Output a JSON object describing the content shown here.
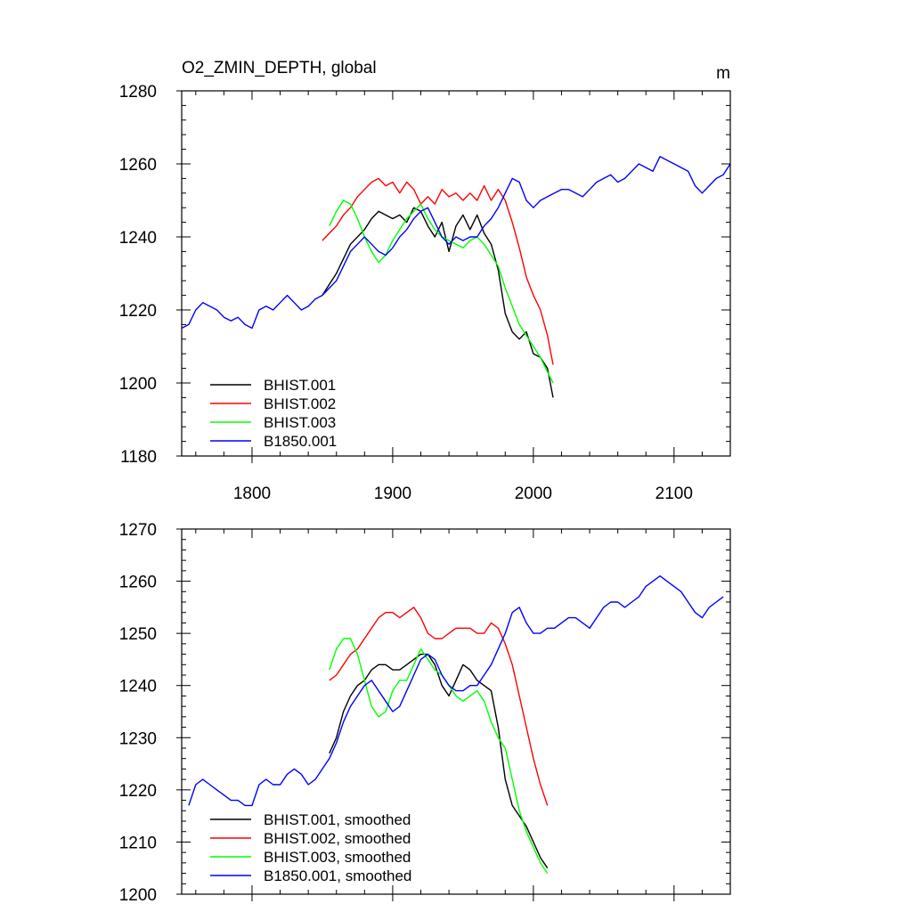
{
  "chart_data": [
    {
      "type": "line",
      "title": "O2_ZMIN_DEPTH, global",
      "unit_label": "m",
      "xlim": [
        1750,
        2140
      ],
      "ylim": [
        1180,
        1280
      ],
      "xticks": [
        1800,
        1900,
        2000,
        2100
      ],
      "yticks": [
        1180,
        1200,
        1220,
        1240,
        1260,
        1280
      ],
      "xtick_labels": [
        "1800",
        "1900",
        "2000",
        "2100"
      ],
      "ytick_labels": [
        "1180",
        "1200",
        "1220",
        "1240",
        "1260",
        "1280"
      ],
      "legend_position": "bottom-left",
      "series": [
        {
          "name": "BHIST.001",
          "color": "#000000",
          "x": [
            1850,
            1855,
            1860,
            1865,
            1870,
            1875,
            1880,
            1885,
            1890,
            1895,
            1900,
            1905,
            1910,
            1915,
            1920,
            1925,
            1930,
            1935,
            1940,
            1945,
            1950,
            1955,
            1960,
            1965,
            1970,
            1975,
            1980,
            1985,
            1990,
            1995,
            2000,
            2005,
            2010,
            2014
          ],
          "y": [
            1224,
            1227,
            1230,
            1234,
            1238,
            1240,
            1242,
            1245,
            1247,
            1246,
            1245,
            1246,
            1244,
            1248,
            1247,
            1243,
            1240,
            1244,
            1236,
            1243,
            1246,
            1242,
            1246,
            1241,
            1238,
            1231,
            1219,
            1214,
            1212,
            1214,
            1208,
            1207,
            1204,
            1196
          ]
        },
        {
          "name": "BHIST.002",
          "color": "#ff0000",
          "x": [
            1850,
            1855,
            1860,
            1865,
            1870,
            1875,
            1880,
            1885,
            1890,
            1895,
            1900,
            1905,
            1910,
            1915,
            1920,
            1925,
            1930,
            1935,
            1940,
            1945,
            1950,
            1955,
            1960,
            1965,
            1970,
            1975,
            1980,
            1985,
            1990,
            1995,
            2000,
            2005,
            2010,
            2014
          ],
          "y": [
            1239,
            1241,
            1243,
            1246,
            1248,
            1251,
            1253,
            1255,
            1256,
            1254,
            1255,
            1252,
            1255,
            1253,
            1249,
            1251,
            1249,
            1253,
            1251,
            1252,
            1250,
            1252,
            1250,
            1254,
            1250,
            1253,
            1250,
            1244,
            1237,
            1229,
            1224,
            1220,
            1213,
            1205
          ]
        },
        {
          "name": "BHIST.003",
          "color": "#00ff00",
          "x": [
            1855,
            1860,
            1865,
            1870,
            1875,
            1880,
            1885,
            1890,
            1895,
            1900,
            1905,
            1910,
            1915,
            1920,
            1925,
            1930,
            1935,
            1940,
            1945,
            1950,
            1955,
            1960,
            1965,
            1970,
            1975,
            1980,
            1985,
            1990,
            1995,
            2000,
            2005,
            2010,
            2014
          ],
          "y": [
            1243,
            1247,
            1250,
            1249,
            1245,
            1240,
            1236,
            1233,
            1235,
            1239,
            1242,
            1245,
            1247,
            1249,
            1245,
            1242,
            1240,
            1239,
            1238,
            1237,
            1239,
            1240,
            1238,
            1235,
            1232,
            1226,
            1221,
            1216,
            1213,
            1210,
            1207,
            1203,
            1200
          ]
        },
        {
          "name": "B1850.001",
          "color": "#0000ff",
          "x": [
            1750,
            1755,
            1760,
            1765,
            1770,
            1775,
            1780,
            1785,
            1790,
            1795,
            1800,
            1805,
            1810,
            1815,
            1820,
            1825,
            1830,
            1835,
            1840,
            1845,
            1850,
            1855,
            1860,
            1865,
            1870,
            1875,
            1880,
            1885,
            1890,
            1895,
            1900,
            1905,
            1910,
            1915,
            1920,
            1925,
            1930,
            1935,
            1940,
            1945,
            1950,
            1955,
            1960,
            1965,
            1970,
            1975,
            1980,
            1985,
            1990,
            1995,
            2000,
            2005,
            2010,
            2015,
            2020,
            2025,
            2030,
            2035,
            2040,
            2045,
            2050,
            2055,
            2060,
            2065,
            2070,
            2075,
            2080,
            2085,
            2090,
            2095,
            2100,
            2105,
            2110,
            2115,
            2120,
            2125,
            2130,
            2135,
            2140
          ],
          "y": [
            1215,
            1216,
            1220,
            1222,
            1221,
            1220,
            1218,
            1217,
            1218,
            1216,
            1215,
            1220,
            1221,
            1220,
            1222,
            1224,
            1222,
            1220,
            1221,
            1223,
            1224,
            1226,
            1228,
            1232,
            1236,
            1238,
            1240,
            1238,
            1236,
            1235,
            1237,
            1240,
            1242,
            1245,
            1247,
            1248,
            1244,
            1240,
            1238,
            1240,
            1239,
            1240,
            1240,
            1243,
            1245,
            1248,
            1252,
            1256,
            1255,
            1250,
            1248,
            1250,
            1251,
            1252,
            1253,
            1253,
            1252,
            1251,
            1253,
            1255,
            1256,
            1257,
            1255,
            1256,
            1258,
            1260,
            1259,
            1258,
            1262,
            1261,
            1260,
            1259,
            1258,
            1254,
            1252,
            1254,
            1256,
            1257,
            1260
          ]
        }
      ]
    },
    {
      "type": "line",
      "title": "",
      "xlim": [
        1750,
        2140
      ],
      "ylim": [
        1200,
        1270
      ],
      "xticks": [
        1800,
        1900,
        2000,
        2100
      ],
      "yticks": [
        1200,
        1210,
        1220,
        1230,
        1240,
        1250,
        1260,
        1270
      ],
      "ytick_labels": [
        "1200",
        "1210",
        "1220",
        "1230",
        "1240",
        "1250",
        "1260",
        "1270"
      ],
      "legend_position": "bottom-left",
      "series": [
        {
          "name": "BHIST.001, smoothed",
          "color": "#000000",
          "x": [
            1855,
            1860,
            1865,
            1870,
            1875,
            1880,
            1885,
            1890,
            1895,
            1900,
            1905,
            1910,
            1915,
            1920,
            1925,
            1930,
            1935,
            1940,
            1945,
            1950,
            1955,
            1960,
            1965,
            1970,
            1975,
            1980,
            1985,
            1990,
            1995,
            2000,
            2005,
            2010
          ],
          "y": [
            1227,
            1230,
            1235,
            1238,
            1240,
            1241,
            1243,
            1244,
            1244,
            1243,
            1243,
            1244,
            1245,
            1246,
            1246,
            1244,
            1240,
            1238,
            1241,
            1244,
            1243,
            1241,
            1240,
            1239,
            1232,
            1222,
            1217,
            1215,
            1213,
            1210,
            1207,
            1205
          ]
        },
        {
          "name": "BHIST.002, smoothed",
          "color": "#ff0000",
          "x": [
            1855,
            1860,
            1865,
            1870,
            1875,
            1880,
            1885,
            1890,
            1895,
            1900,
            1905,
            1910,
            1915,
            1920,
            1925,
            1930,
            1935,
            1940,
            1945,
            1950,
            1955,
            1960,
            1965,
            1970,
            1975,
            1980,
            1985,
            1990,
            1995,
            2000,
            2005,
            2010
          ],
          "y": [
            1241,
            1242,
            1244,
            1246,
            1247,
            1249,
            1251,
            1253,
            1254,
            1254,
            1253,
            1254,
            1255,
            1253,
            1250,
            1249,
            1249,
            1250,
            1251,
            1251,
            1251,
            1250,
            1250,
            1252,
            1251,
            1248,
            1244,
            1238,
            1232,
            1226,
            1221,
            1217
          ]
        },
        {
          "name": "BHIST.003, smoothed",
          "color": "#00ff00",
          "x": [
            1855,
            1860,
            1865,
            1870,
            1875,
            1880,
            1885,
            1890,
            1895,
            1900,
            1905,
            1910,
            1915,
            1920,
            1925,
            1930,
            1935,
            1940,
            1945,
            1950,
            1955,
            1960,
            1965,
            1970,
            1975,
            1980,
            1985,
            1990,
            1995,
            2000,
            2005,
            2010
          ],
          "y": [
            1243,
            1247,
            1249,
            1249,
            1246,
            1241,
            1236,
            1234,
            1235,
            1239,
            1241,
            1241,
            1244,
            1247,
            1245,
            1243,
            1242,
            1240,
            1238,
            1237,
            1238,
            1239,
            1237,
            1233,
            1230,
            1228,
            1222,
            1216,
            1212,
            1209,
            1206,
            1204
          ]
        },
        {
          "name": "B1850.001, smoothed",
          "color": "#0000ff",
          "x": [
            1755,
            1760,
            1765,
            1770,
            1775,
            1780,
            1785,
            1790,
            1795,
            1800,
            1805,
            1810,
            1815,
            1820,
            1825,
            1830,
            1835,
            1840,
            1845,
            1850,
            1855,
            1860,
            1865,
            1870,
            1875,
            1880,
            1885,
            1890,
            1895,
            1900,
            1905,
            1910,
            1915,
            1920,
            1925,
            1930,
            1935,
            1940,
            1945,
            1950,
            1955,
            1960,
            1965,
            1970,
            1975,
            1980,
            1985,
            1990,
            1995,
            2000,
            2005,
            2010,
            2015,
            2020,
            2025,
            2030,
            2035,
            2040,
            2045,
            2050,
            2055,
            2060,
            2065,
            2070,
            2075,
            2080,
            2085,
            2090,
            2095,
            2100,
            2105,
            2110,
            2115,
            2120,
            2125,
            2130,
            2135
          ],
          "y": [
            1217,
            1221,
            1222,
            1221,
            1220,
            1219,
            1218,
            1218,
            1217,
            1217,
            1221,
            1222,
            1221,
            1221,
            1223,
            1224,
            1223,
            1221,
            1222,
            1224,
            1226,
            1229,
            1233,
            1236,
            1238,
            1240,
            1241,
            1239,
            1237,
            1235,
            1236,
            1239,
            1242,
            1245,
            1246,
            1245,
            1242,
            1240,
            1239,
            1239,
            1240,
            1240,
            1242,
            1244,
            1247,
            1250,
            1254,
            1255,
            1252,
            1250,
            1250,
            1251,
            1251,
            1252,
            1253,
            1253,
            1252,
            1251,
            1253,
            1255,
            1256,
            1256,
            1255,
            1256,
            1257,
            1259,
            1260,
            1261,
            1260,
            1259,
            1258,
            1256,
            1254,
            1253,
            1255,
            1256,
            1257
          ]
        }
      ]
    }
  ]
}
